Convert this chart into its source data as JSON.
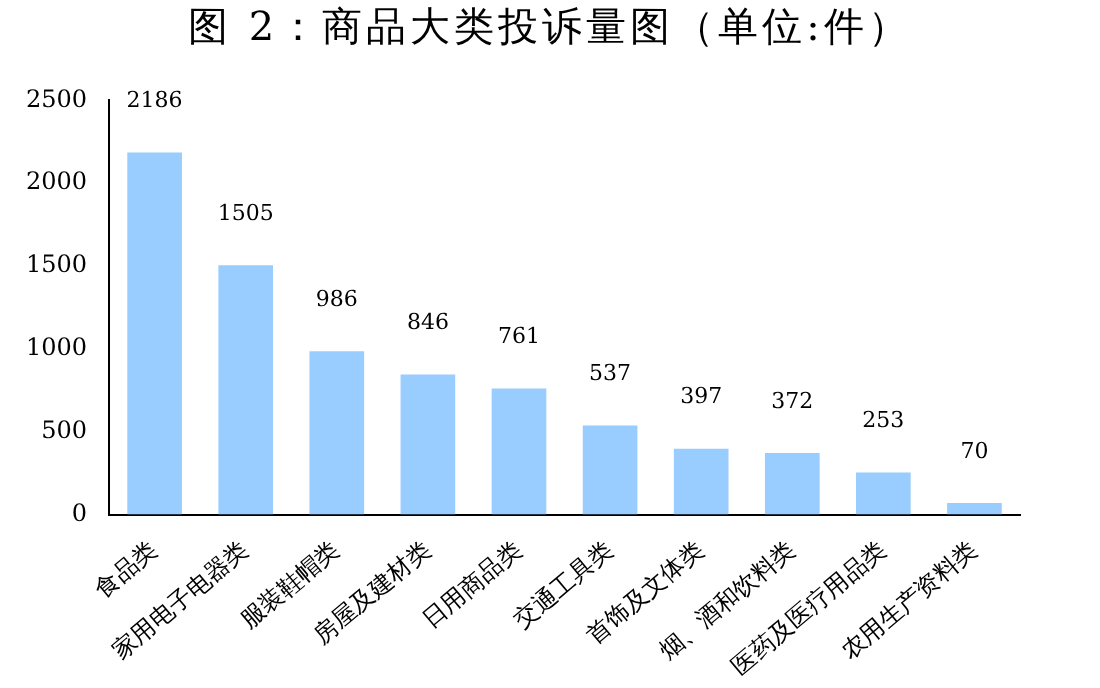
{
  "chart_data": {
    "type": "bar",
    "title": "图 2：商品大类投诉量图（单位:件）",
    "categories": [
      "食品类",
      "家用电子电器类",
      "服装鞋帽类",
      "房屋及建材类",
      "日用商品类",
      "交通工具类",
      "首饰及文体类",
      "烟、酒和饮料类",
      "医药及医疗用品类",
      "农用生产资料类"
    ],
    "values": [
      2186,
      1505,
      986,
      846,
      761,
      537,
      397,
      372,
      253,
      70
    ],
    "color": "#99ccff",
    "ylim": [
      0,
      2500
    ],
    "yticks": [
      0,
      500,
      1000,
      1500,
      2000,
      2500
    ],
    "grid": false,
    "data_labels": true
  }
}
